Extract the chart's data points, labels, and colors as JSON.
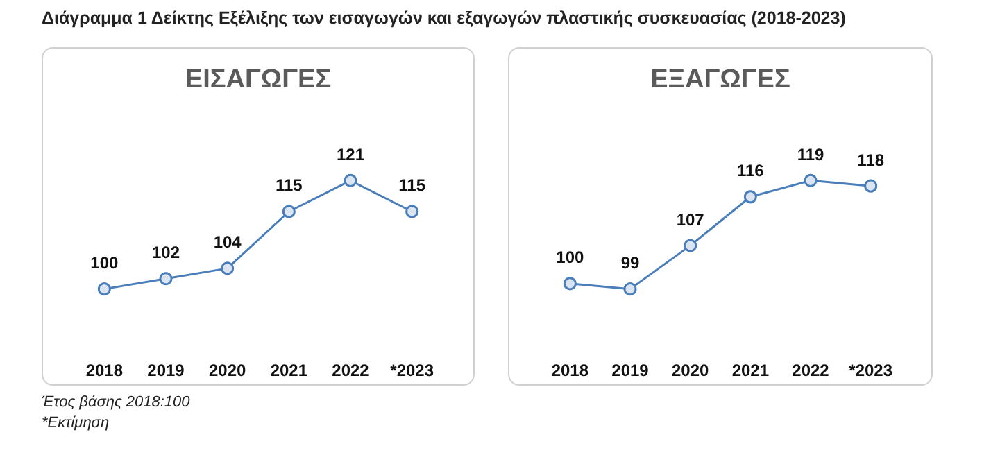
{
  "chart_data": [
    {
      "type": "line",
      "title": "Διάγραμμα 1 Δείκτης Εξέλιξης των εισαγωγών και εξαγωγών πλαστικής συσκευασίας (2018-2023)",
      "subtitle": "ΕΙΣΑΓΩΓΕΣ",
      "categories": [
        "2018",
        "2019",
        "2020",
        "2021",
        "2022",
        "*2023"
      ],
      "values": [
        100,
        102,
        104,
        115,
        121,
        115
      ],
      "color": "#4a7ebb",
      "data_labels": true,
      "marker": "circle",
      "line_style": "solid",
      "annotations": [
        "Έτος βάσης 2018:100",
        "*Εκτίμηση"
      ]
    },
    {
      "type": "line",
      "subtitle": "ΕΞΑΓΩΓΕΣ",
      "categories": [
        "2018",
        "2019",
        "2020",
        "2021",
        "2022",
        "*2023"
      ],
      "values": [
        100,
        99,
        107,
        116,
        119,
        118
      ],
      "color": "#4a7ebb",
      "data_labels": true,
      "marker": "circle",
      "line_style": "solid"
    }
  ]
}
